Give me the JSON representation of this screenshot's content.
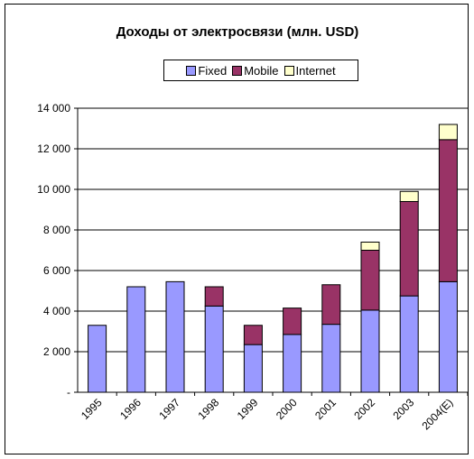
{
  "chart_data": {
    "type": "bar",
    "stacked": true,
    "title": "Доходы от электросвязи (млн. USD)",
    "categories": [
      "1995",
      "1996",
      "1997",
      "1998",
      "1999",
      "2000",
      "2001",
      "2002",
      "2003",
      "2004(E)"
    ],
    "series": [
      {
        "name": "Fixed",
        "color": "#9999ff",
        "values": [
          3300,
          5200,
          5450,
          4250,
          2350,
          2850,
          3350,
          4050,
          4750,
          5450
        ]
      },
      {
        "name": "Mobile",
        "color": "#993366",
        "values": [
          0,
          0,
          0,
          950,
          950,
          1300,
          1950,
          2950,
          4650,
          7000
        ]
      },
      {
        "name": "Internet",
        "color": "#ffffcc",
        "values": [
          0,
          0,
          0,
          0,
          0,
          0,
          0,
          400,
          500,
          750
        ]
      }
    ],
    "ylim": [
      0,
      14000
    ],
    "yticks": [
      "-",
      "2 000",
      "4 000",
      "6 000",
      "8 000",
      "10 000",
      "12 000",
      "14 000"
    ],
    "grid": true,
    "legend_position": "top"
  }
}
